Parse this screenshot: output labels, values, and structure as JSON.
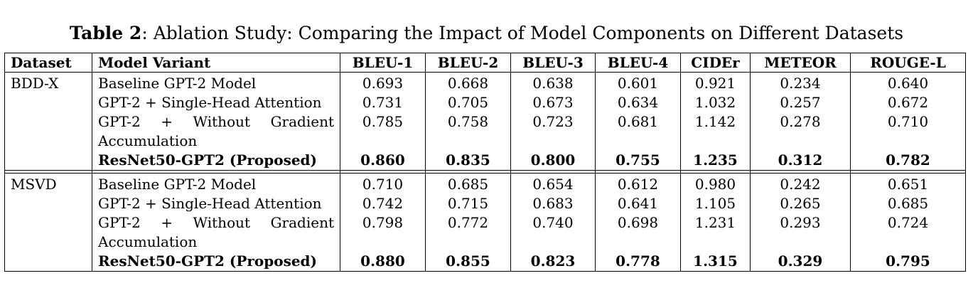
{
  "caption": {
    "label": "Table 2",
    "text": ": Ablation Study: Comparing the Impact of Model Components on Different Datasets"
  },
  "table": {
    "headers": [
      "Dataset",
      "Model Variant",
      "BLEU-1",
      "BLEU-2",
      "BLEU-3",
      "BLEU-4",
      "CIDEr",
      "METEOR",
      "ROUGE-L"
    ],
    "groups": [
      {
        "dataset": "BDD-X",
        "rows": [
          {
            "variant": "Baseline GPT-2 Model",
            "values": [
              "0.693",
              "0.668",
              "0.638",
              "0.601",
              "0.921",
              "0.234",
              "0.640"
            ]
          },
          {
            "variant": "GPT-2 + Single-Head Attention",
            "values": [
              "0.731",
              "0.705",
              "0.673",
              "0.634",
              "1.032",
              "0.257",
              "0.672"
            ]
          },
          {
            "variant_line1": [
              "GPT-2",
              "+",
              "Without",
              "Gradient"
            ],
            "variant_line2": "Accumulation",
            "values": [
              "0.785",
              "0.758",
              "0.723",
              "0.681",
              "1.142",
              "0.278",
              "0.710"
            ]
          },
          {
            "variant": "ResNet50-GPT2 (Proposed)",
            "values": [
              "0.860",
              "0.835",
              "0.800",
              "0.755",
              "1.235",
              "0.312",
              "0.782"
            ]
          }
        ]
      },
      {
        "dataset": "MSVD",
        "rows": [
          {
            "variant": "Baseline GPT-2 Model",
            "values": [
              "0.710",
              "0.685",
              "0.654",
              "0.612",
              "0.980",
              "0.242",
              "0.651"
            ]
          },
          {
            "variant": "GPT-2 + Single-Head Attention",
            "values": [
              "0.742",
              "0.715",
              "0.683",
              "0.641",
              "1.105",
              "0.265",
              "0.685"
            ]
          },
          {
            "variant_line1": [
              "GPT-2",
              "+",
              "Without",
              "Gradient"
            ],
            "variant_line2": "Accumulation",
            "values": [
              "0.798",
              "0.772",
              "0.740",
              "0.698",
              "1.231",
              "0.293",
              "0.724"
            ]
          },
          {
            "variant": "ResNet50-GPT2 (Proposed)",
            "values": [
              "0.880",
              "0.855",
              "0.823",
              "0.778",
              "1.315",
              "0.329",
              "0.795"
            ]
          }
        ]
      }
    ]
  }
}
